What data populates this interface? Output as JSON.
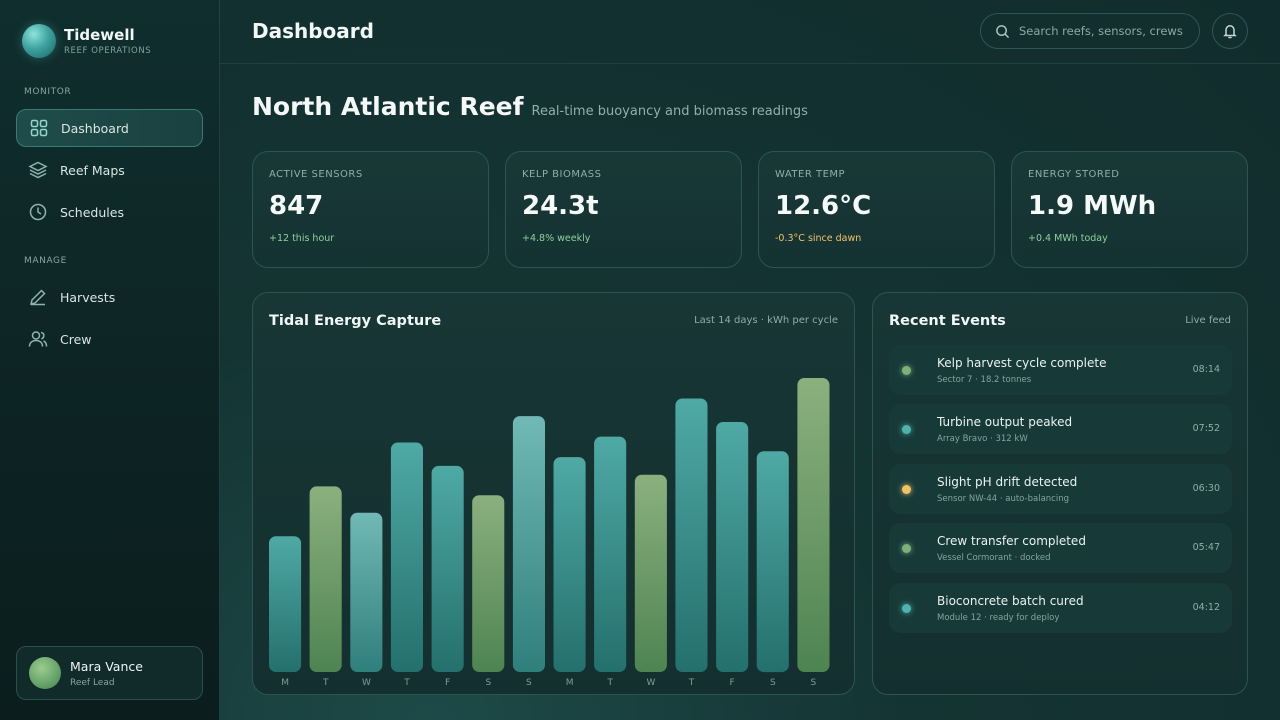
{
  "brand": {
    "name": "Tidewell",
    "subtitle": "REEF OPERATIONS"
  },
  "nav": {
    "monitor_label": "MONITOR",
    "manage_label": "MANAGE",
    "items": [
      {
        "label": "Dashboard",
        "icon": "grid-icon",
        "active": true
      },
      {
        "label": "Reef Maps",
        "icon": "layers-icon",
        "active": false
      },
      {
        "label": "Schedules",
        "icon": "clock-icon",
        "active": false
      },
      {
        "label": "Harvests",
        "icon": "pen-icon",
        "active": false
      },
      {
        "label": "Crew",
        "icon": "users-icon",
        "active": false
      }
    ]
  },
  "user": {
    "name": "Mara Vance",
    "role": "Reef Lead"
  },
  "header": {
    "title": "Dashboard",
    "search_placeholder": "Search reefs, sensors, crews"
  },
  "hero": {
    "title": "North Atlantic Reef",
    "subtitle": "Real-time buoyancy and biomass readings"
  },
  "stats": [
    {
      "label": "ACTIVE SENSORS",
      "value": "847",
      "delta": "+12 this hour",
      "delta_color": "#8fd0a0"
    },
    {
      "label": "KELP BIOMASS",
      "value": "24.3t",
      "delta": "+4.8% weekly",
      "delta_color": "#8fd0a0"
    },
    {
      "label": "WATER TEMP",
      "value": "12.6°C",
      "delta": "-0.3°C since dawn",
      "delta_color": "#f2c46b"
    },
    {
      "label": "ENERGY STORED",
      "value": "1.9 MWh",
      "delta": "+0.4 MWh today",
      "delta_color": "#8fd0a0"
    }
  ],
  "chart_panel": {
    "title": "Tidal Energy Capture",
    "meta": "Last 14 days · kWh per cycle"
  },
  "chart_data": {
    "type": "bar",
    "title": "Tidal Energy Capture",
    "categories": [
      "M",
      "T",
      "W",
      "T",
      "F",
      "S",
      "S",
      "M",
      "T",
      "W",
      "T",
      "F",
      "S",
      "S"
    ],
    "values": [
      46,
      63,
      54,
      78,
      70,
      60,
      87,
      73,
      80,
      67,
      93,
      85,
      75,
      100
    ],
    "colors": [
      "teal",
      "green",
      "teal-light",
      "teal",
      "teal",
      "green",
      "teal-light",
      "teal",
      "teal",
      "green",
      "teal",
      "teal",
      "teal",
      "green"
    ],
    "ylim": [
      0,
      100
    ],
    "grid": false
  },
  "events_panel": {
    "title": "Recent Events",
    "meta": "Live feed"
  },
  "events": [
    {
      "title": "Kelp harvest cycle complete",
      "sub": "Sector 7 · 18.2 tonnes",
      "time": "08:14",
      "color": "#7fb07a"
    },
    {
      "title": "Turbine output peaked",
      "sub": "Array Bravo · 312 kW",
      "time": "07:52",
      "color": "#4fb3ad"
    },
    {
      "title": "Slight pH drift detected",
      "sub": "Sensor NW-44 · auto-balancing",
      "time": "06:30",
      "color": "#f0c266"
    },
    {
      "title": "Crew transfer completed",
      "sub": "Vessel Cormorant · docked",
      "time": "05:47",
      "color": "#7fb07a"
    },
    {
      "title": "Bioconcrete batch cured",
      "sub": "Module 12 · ready for deploy",
      "time": "04:12",
      "color": "#4fb3ad"
    }
  ]
}
